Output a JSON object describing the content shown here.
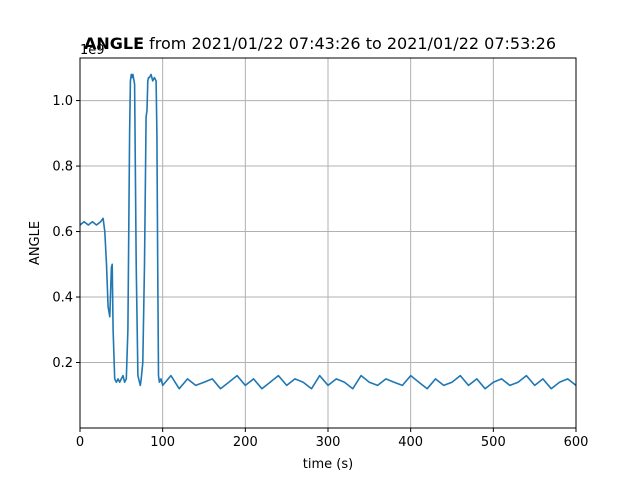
{
  "chart_data": {
    "type": "line",
    "title_bold": "ANGLE",
    "title_rest": " from 2021/01/22 07:43:26 to 2021/01/22 07:53:26",
    "xlabel": "time (s)",
    "ylabel": "ANGLE",
    "offset_text": "1e9",
    "xlim": [
      0,
      600
    ],
    "ylim": [
      0,
      1.13
    ],
    "xticks": [
      0,
      100,
      200,
      300,
      400,
      500,
      600
    ],
    "xtick_labels": [
      "0",
      "100",
      "200",
      "300",
      "400",
      "500",
      "600"
    ],
    "yticks": [
      0.2,
      0.4,
      0.6,
      0.8,
      1.0
    ],
    "ytick_labels": [
      "0.2",
      "0.4",
      "0.6",
      "0.8",
      "1.0"
    ],
    "grid": true,
    "color": "#1f77b4",
    "series": [
      {
        "x": [
          0,
          5,
          10,
          15,
          20,
          25,
          28,
          30,
          32,
          34,
          36,
          38,
          39,
          40,
          42,
          44,
          46,
          48,
          50,
          52,
          54,
          56,
          58,
          60,
          61,
          62,
          63,
          64,
          66,
          68,
          70,
          71,
          72,
          73,
          74,
          76,
          78,
          80,
          81,
          82,
          83,
          84,
          86,
          88,
          90,
          92,
          93,
          94,
          95,
          96,
          98,
          100,
          110,
          120,
          130,
          140,
          150,
          160,
          170,
          180,
          190,
          200,
          210,
          220,
          230,
          240,
          250,
          260,
          270,
          280,
          290,
          300,
          310,
          320,
          330,
          340,
          350,
          360,
          370,
          380,
          390,
          400,
          410,
          420,
          430,
          440,
          450,
          460,
          470,
          480,
          490,
          500,
          510,
          520,
          530,
          540,
          550,
          560,
          570,
          580,
          590,
          600
        ],
        "y": [
          0.62,
          0.63,
          0.62,
          0.63,
          0.62,
          0.63,
          0.64,
          0.6,
          0.5,
          0.37,
          0.34,
          0.49,
          0.5,
          0.3,
          0.15,
          0.14,
          0.15,
          0.14,
          0.15,
          0.16,
          0.14,
          0.15,
          0.3,
          0.9,
          1.06,
          1.08,
          1.07,
          1.08,
          1.05,
          0.5,
          0.16,
          0.15,
          0.14,
          0.13,
          0.15,
          0.2,
          0.5,
          0.95,
          0.97,
          1.06,
          1.07,
          1.07,
          1.08,
          1.06,
          1.07,
          1.06,
          0.9,
          0.5,
          0.16,
          0.14,
          0.15,
          0.13,
          0.16,
          0.12,
          0.15,
          0.13,
          0.14,
          0.15,
          0.12,
          0.14,
          0.16,
          0.13,
          0.15,
          0.12,
          0.14,
          0.16,
          0.13,
          0.15,
          0.14,
          0.12,
          0.16,
          0.13,
          0.15,
          0.14,
          0.12,
          0.16,
          0.14,
          0.13,
          0.15,
          0.14,
          0.13,
          0.16,
          0.14,
          0.12,
          0.15,
          0.13,
          0.14,
          0.16,
          0.13,
          0.15,
          0.12,
          0.14,
          0.15,
          0.13,
          0.14,
          0.16,
          0.13,
          0.15,
          0.12,
          0.14,
          0.15,
          0.13
        ]
      }
    ]
  }
}
